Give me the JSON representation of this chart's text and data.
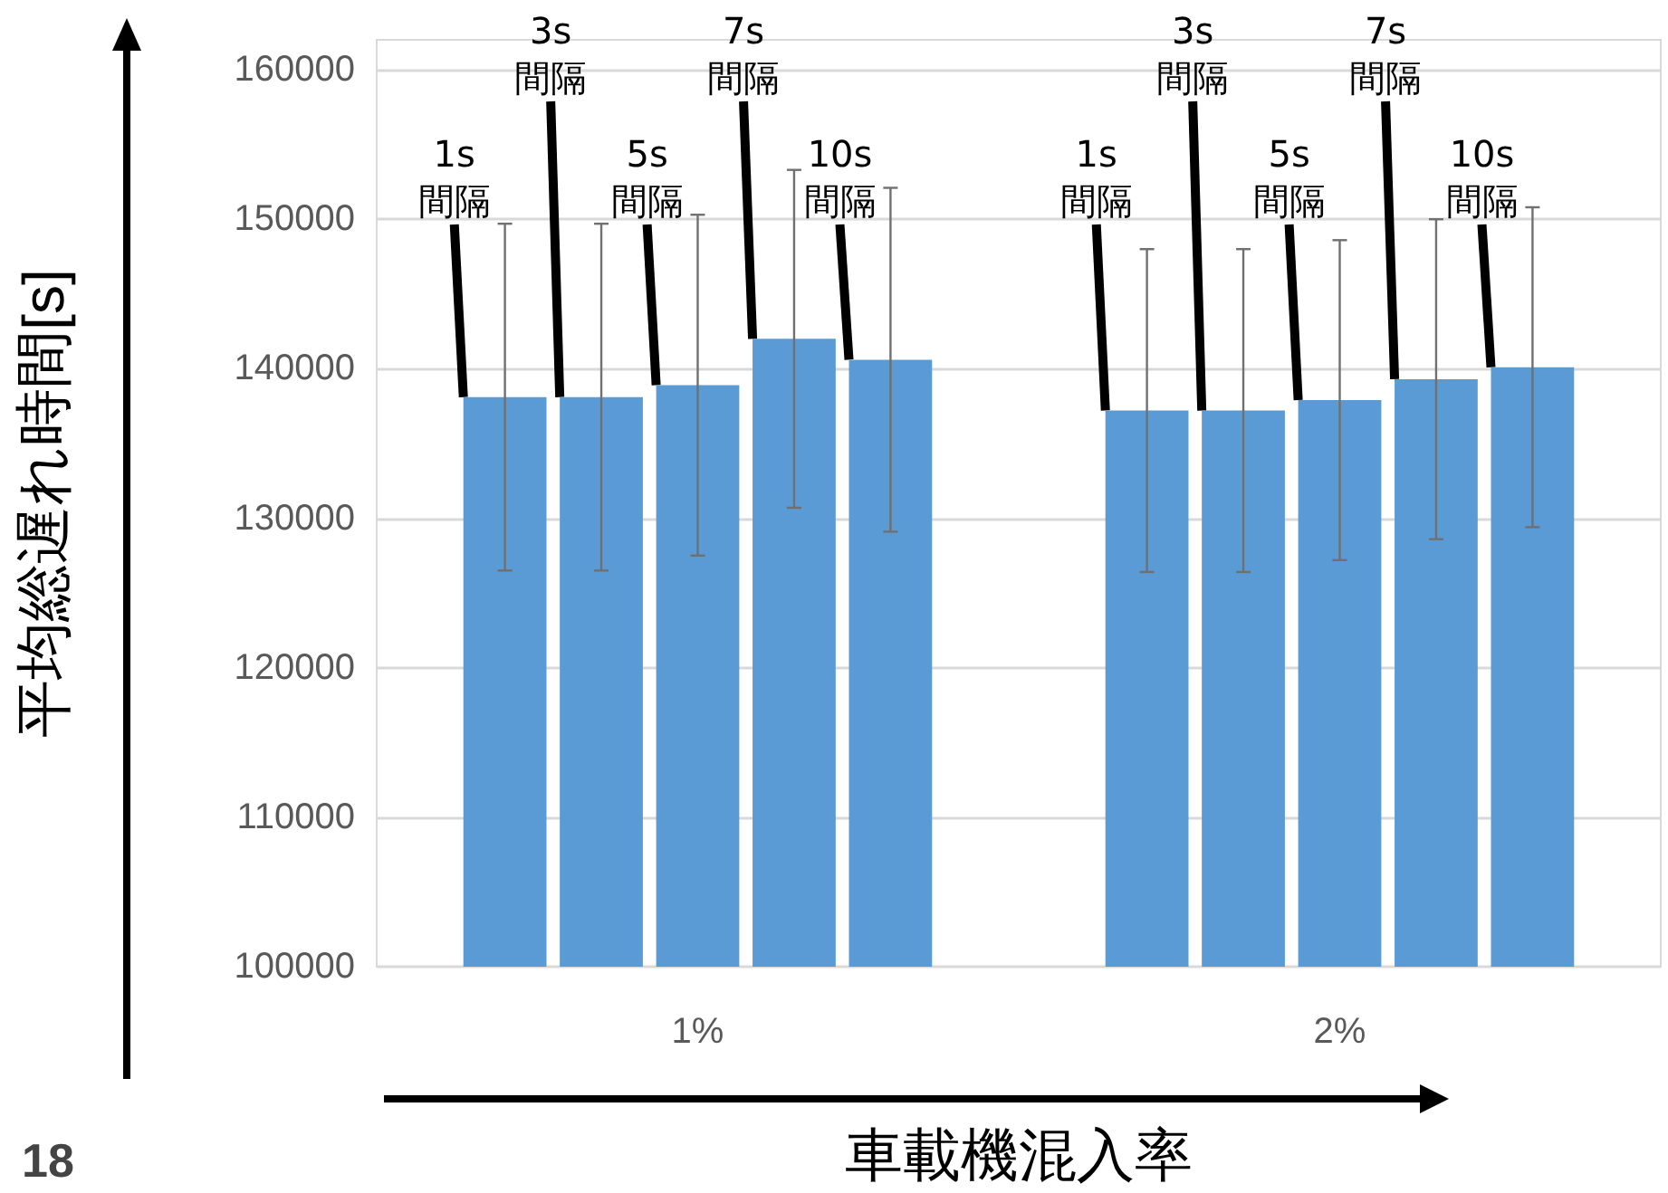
{
  "chart_data": {
    "type": "bar",
    "xlabel": "車載機混入率",
    "ylabel": "平均総遅れ時間[s]",
    "categories": [
      "1%",
      "2%"
    ],
    "series": [
      {
        "name": "1s\n間隔",
        "color": "#5b9bd5",
        "values": [
          138100,
          137200
        ],
        "errors": [
          11600,
          10800
        ]
      },
      {
        "name": "3s\n間隔",
        "color": "#5b9bd5",
        "values": [
          138100,
          137200
        ],
        "errors": [
          11600,
          10800
        ]
      },
      {
        "name": "5s\n間隔",
        "color": "#5b9bd5",
        "values": [
          138900,
          137900
        ],
        "errors": [
          11400,
          10700
        ]
      },
      {
        "name": "7s\n間隔",
        "color": "#5b9bd5",
        "values": [
          142000,
          139300
        ],
        "errors": [
          11300,
          10700
        ]
      },
      {
        "name": "10s\n間隔",
        "color": "#5b9bd5",
        "values": [
          140600,
          140100
        ],
        "errors": [
          11500,
          10700
        ]
      }
    ],
    "ylim": [
      100000,
      162000
    ],
    "yticks": [
      100000,
      110000,
      120000,
      130000,
      140000,
      150000,
      160000
    ],
    "grid": "y",
    "legend": false,
    "annotations": [
      "18"
    ]
  }
}
